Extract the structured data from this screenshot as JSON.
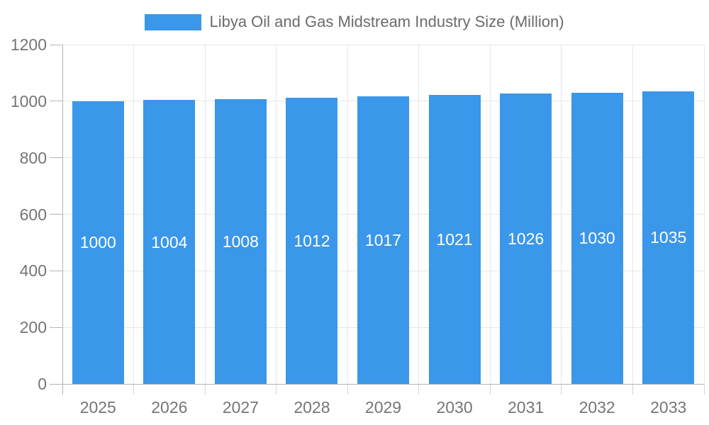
{
  "chart_data": {
    "type": "bar",
    "title": "Libya Oil and Gas Midstream Industry Size (Million)",
    "categories": [
      "2025",
      "2026",
      "2027",
      "2028",
      "2029",
      "2030",
      "2031",
      "2032",
      "2033"
    ],
    "values": [
      1000,
      1004,
      1008,
      1012,
      1017,
      1021,
      1026,
      1030,
      1035
    ],
    "xlabel": "",
    "ylabel": "",
    "ylim": [
      0,
      1200
    ],
    "yticks": [
      0,
      200,
      400,
      600,
      800,
      1000,
      1200
    ],
    "grid": true,
    "legend_position": "top",
    "bar_labels": true,
    "colors": {
      "bar": "#3B97E9",
      "bar_label": "#FFFFFF",
      "grid": "#E6E6E6",
      "boundary_tick": "#D6D6D6",
      "axis": "#B5B5B5",
      "tick_text": "#757575",
      "legend_text": "#6B6B6B"
    }
  }
}
